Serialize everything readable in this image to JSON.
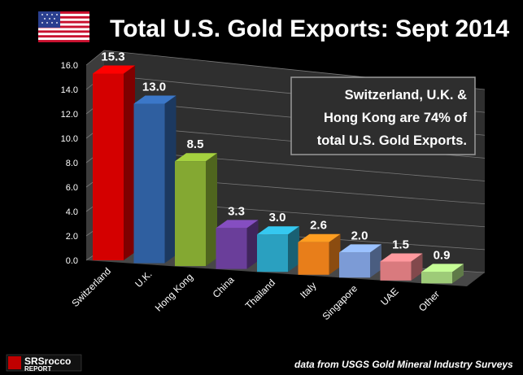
{
  "chart_data": {
    "type": "bar",
    "title": "Total U.S. Gold Exports: Sept 2014",
    "categories": [
      "Switzerland",
      "U.K.",
      "Hong Kong",
      "China",
      "Thailand",
      "Italy",
      "Singapore",
      "UAE",
      "Other"
    ],
    "values": [
      15.3,
      13.0,
      8.5,
      3.3,
      3.0,
      2.6,
      2.0,
      1.5,
      0.9
    ],
    "value_labels": [
      "15.3",
      "13.0",
      "8.5",
      "3.3",
      "3.0",
      "2.6",
      "2.0",
      "1.5",
      "0.9"
    ],
    "y_ticks": [
      "0.0",
      "2.0",
      "4.0",
      "6.0",
      "8.0",
      "10.0",
      "12.0",
      "14.0",
      "16.0"
    ],
    "ylim": [
      0,
      16
    ],
    "xlabel": "",
    "ylabel": "",
    "grid": true,
    "bar_colors": [
      "#d40000",
      "#2f5fa0",
      "#84a832",
      "#6a3e9a",
      "#2aa0c0",
      "#e87e1a",
      "#7c9bd6",
      "#d97a7e",
      "#9ecb78"
    ],
    "annotation": [
      "Switzerland, U.K. &",
      "Hong Kong are 74% of",
      "total U.S. Gold Exports."
    ],
    "source": "data from USGS Gold Mineral Industry Surveys"
  },
  "logo": {
    "big": "SRSrocco",
    "line2": "REPORT"
  },
  "flag": "us-flag-icon"
}
